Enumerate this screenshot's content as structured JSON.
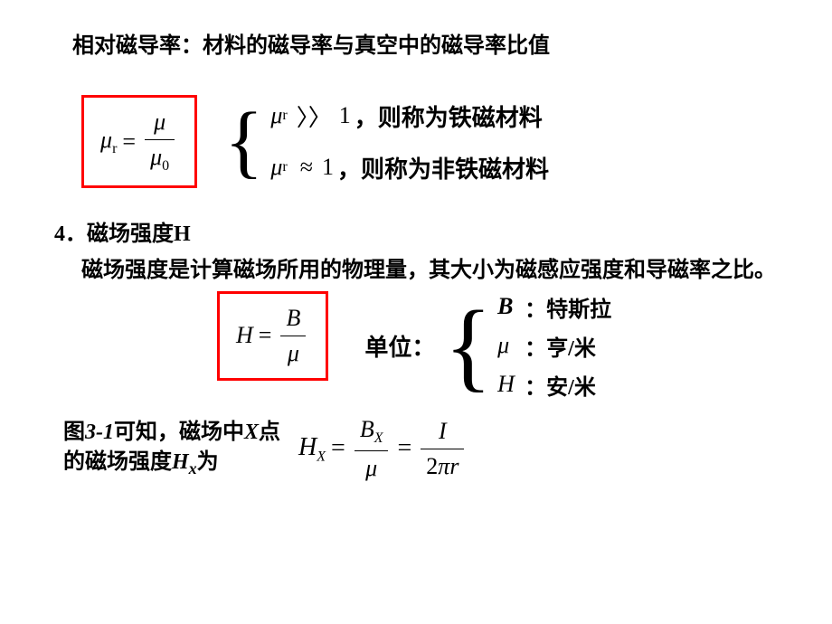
{
  "colors": {
    "red_border": "#ff0000",
    "text": "#000000",
    "background": "#ffffff"
  },
  "heading": "相对磁导率：材料的磁导率与真空中的磁导率比值",
  "eq1": {
    "lhs_mu": "μ",
    "lhs_sub": "r",
    "eq": "=",
    "num": "μ",
    "den_mu": "μ",
    "den_sub": "0"
  },
  "cases1": {
    "line1_mu": "μ",
    "line1_sub": "r",
    "line1_rel": "〉〉",
    "line1_val": "1",
    "line1_txt": "，则称为铁磁材料",
    "line2_mu": "μ",
    "line2_sub": "r",
    "line2_rel": "≈",
    "line2_val": "1",
    "line2_txt": "，则称为非铁磁材料"
  },
  "section4_head": "4．磁场强度H",
  "section4_body": "磁场强度是计算磁场所用的物理量，其大小为磁感应强度和导磁率之比。",
  "eq2": {
    "lhs": "H",
    "eq": "=",
    "num": "B",
    "den": "μ"
  },
  "units": {
    "label": "单位：",
    "row1_sym": "B",
    "row1_txt": "：特斯拉",
    "row2_sym": "μ",
    "row2_txt": "：亨/米",
    "row3_sym": "H",
    "row3_txt": "：安/米"
  },
  "fig_text": {
    "line1a": "图",
    "line1b": "3-1",
    "line1c": "可知，磁场中",
    "line2a": "X",
    "line2b": "点的磁场强度",
    "line3a": "H",
    "line3b": "x",
    "line3c": "为"
  },
  "eq3": {
    "lhs_H": "H",
    "lhs_sub": "X",
    "eq1": "=",
    "f1_num_B": "B",
    "f1_num_sub": "X",
    "f1_den": "μ",
    "eq2": "=",
    "f2_num": "I",
    "f2_den_2": "2",
    "f2_den_pi": "π",
    "f2_den_r": "r"
  }
}
